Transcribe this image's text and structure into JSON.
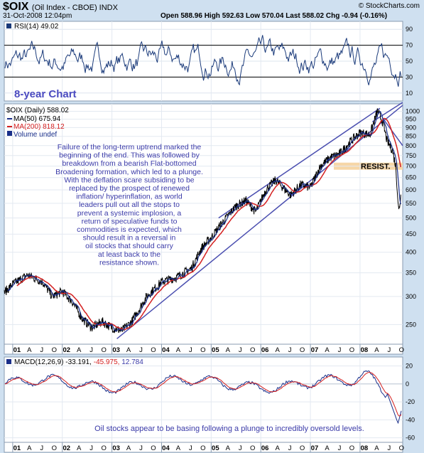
{
  "header": {
    "symbol": "$OIX",
    "name": "(Oil Index - CBOE) INDX",
    "datetime": "31-Oct-2008 12:04pm",
    "ohlc": "Open 588.96  High 592.63  Low 570.04  Last 588.02  Chg -0.94 (-0.16%)",
    "brand": "© StockCharts.com"
  },
  "chart_data": [
    {
      "type": "line",
      "panel": "rsi",
      "legend": "RSI(14) 49.02",
      "y_ticks": [
        10,
        30,
        50,
        70,
        90
      ],
      "ylim": [
        0,
        100
      ],
      "ref_lines": [
        30,
        70
      ],
      "label": "8-year Chart"
    },
    {
      "type": "line",
      "panel": "price",
      "scale": "log",
      "legend": [
        "$OIX (Daily) 588.02",
        "MA(50) 675.94",
        "MA(200) 818.12",
        "Volume undef"
      ],
      "y_ticks": [
        250,
        300,
        350,
        400,
        450,
        500,
        550,
        600,
        650,
        700,
        750,
        800,
        850,
        900,
        950,
        1000
      ],
      "ylim": [
        220,
        1050
      ],
      "x_ticks": [
        "01",
        "A",
        "J",
        "O",
        "02",
        "A",
        "J",
        "O",
        "03",
        "A",
        "J",
        "O",
        "04",
        "A",
        "J",
        "O",
        "05",
        "A",
        "J",
        "O",
        "06",
        "A",
        "J",
        "O",
        "07",
        "A",
        "J",
        "O",
        "08",
        "A",
        "J",
        "O"
      ],
      "series": [
        {
          "x": [
            2000.8,
            2001.0,
            2001.3,
            2001.6,
            2001.8,
            2002.0,
            2002.2,
            2002.4,
            2002.6,
            2002.8,
            2003.0,
            2003.2,
            2003.4,
            2003.7,
            2004.0,
            2004.3,
            2004.6,
            2004.8,
            2005.0,
            2005.2,
            2005.5,
            2005.7,
            2005.9,
            2006.1,
            2006.3,
            2006.6,
            2006.8,
            2007.0,
            2007.2,
            2007.4,
            2007.6,
            2007.8,
            2008.0,
            2008.2,
            2008.35,
            2008.45,
            2008.55,
            2008.65,
            2008.72,
            2008.78,
            2008.83
          ],
          "y": [
            305,
            325,
            345,
            330,
            300,
            310,
            290,
            260,
            245,
            255,
            245,
            240,
            255,
            300,
            330,
            340,
            360,
            410,
            440,
            480,
            540,
            560,
            520,
            600,
            640,
            580,
            620,
            610,
            700,
            740,
            760,
            820,
            870,
            860,
            1000,
            940,
            820,
            780,
            700,
            520,
            588
          ]
        }
      ],
      "annotation": "Failure of the long-term uptrend marked the beginning of the end. This was followed by breakdown from a bearish Flat-bottomed Broadening formation, which led to a plunge. With the deflation scare subsiding to be replaced by the prospect of renewed inflation/ hyperinflation, as world leaders pull out all the stops to prevent a systemic implosion, a return of speculative funds to commodities is expected, which should result in a reversal in oil stocks that should carry at least back to the resistance shown.",
      "resist_label": "RESIST.",
      "resist_level": 700
    },
    {
      "type": "line",
      "panel": "macd",
      "legend_parts": [
        "MACD(12,26,9) -33.191,",
        "-45.975,",
        "12.784"
      ],
      "y_ticks": [
        -60,
        -40,
        -20,
        0,
        20
      ],
      "ylim": [
        -65,
        30
      ],
      "annotation": "Oil stocks appear to be basing following a plunge to incredibly oversold levels."
    }
  ],
  "colors": {
    "panel_bg": "#ffffff",
    "page_bg": "#cfe0f0",
    "rsi_line": "#1a3a7a",
    "ma50": "#1a2f8a",
    "ma200": "#d42020",
    "trend": "#4b4fb0",
    "text_blue": "#3a3aa8",
    "resist_band": "#f6d7a8"
  }
}
